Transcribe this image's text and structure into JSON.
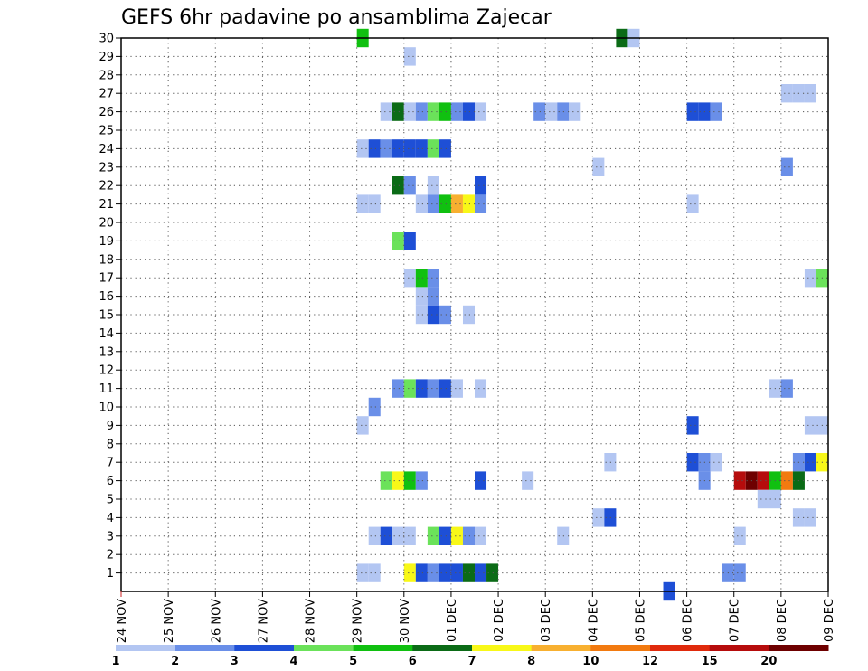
{
  "chart_data": {
    "type": "heatmap",
    "title": "GEFS 6hr padavine po ansamblima Zajecar",
    "x_tick_labels": [
      "24 NOV",
      "25 NOV",
      "26 NOV",
      "27 NOV",
      "28 NOV",
      "29 NOV",
      "30 NOV",
      "01 DEC",
      "02 DEC",
      "03 DEC",
      "04 DEC",
      "05 DEC",
      "06 DEC",
      "07 DEC",
      "08 DEC",
      "09 DEC"
    ],
    "y_tick_labels": [
      "1",
      "2",
      "3",
      "4",
      "5",
      "6",
      "7",
      "8",
      "9",
      "10",
      "11",
      "12",
      "13",
      "14",
      "15",
      "16",
      "17",
      "18",
      "19",
      "20",
      "21",
      "22",
      "23",
      "24",
      "25",
      "26",
      "27",
      "28",
      "29",
      "30"
    ],
    "x_range_days": [
      0,
      15
    ],
    "y_range_members": [
      0,
      30
    ],
    "grid": "dotted",
    "colorbar": {
      "boundaries": [
        "1",
        "2",
        "3",
        "4",
        "5",
        "6",
        "7",
        "8",
        "10",
        "12",
        "15",
        "20"
      ],
      "colors": [
        "#b3c6f2",
        "#6a8fe8",
        "#1e4fd6",
        "#6be25a",
        "#10c010",
        "#0b6b16",
        "#f8f818",
        "#f8b030",
        "#f27a10",
        "#e02a0c",
        "#b60c0c",
        "#6e0000"
      ]
    },
    "cells": [
      {
        "m": 30,
        "d": 5.0,
        "c": 4
      },
      {
        "m": 30,
        "d": 10.5,
        "c": 5
      },
      {
        "m": 30,
        "d": 10.75,
        "c": 0
      },
      {
        "m": 29,
        "d": 6.0,
        "c": 0
      },
      {
        "m": 27,
        "d": 14.0,
        "c": 0
      },
      {
        "m": 27,
        "d": 14.25,
        "c": 0
      },
      {
        "m": 27,
        "d": 14.5,
        "c": 0
      },
      {
        "m": 26,
        "d": 5.5,
        "c": 0
      },
      {
        "m": 26,
        "d": 5.75,
        "c": 5
      },
      {
        "m": 26,
        "d": 6.0,
        "c": 0
      },
      {
        "m": 26,
        "d": 6.25,
        "c": 1
      },
      {
        "m": 26,
        "d": 6.5,
        "c": 3
      },
      {
        "m": 26,
        "d": 6.75,
        "c": 4
      },
      {
        "m": 26,
        "d": 7.0,
        "c": 1
      },
      {
        "m": 26,
        "d": 7.25,
        "c": 2
      },
      {
        "m": 26,
        "d": 7.5,
        "c": 0
      },
      {
        "m": 26,
        "d": 8.75,
        "c": 1
      },
      {
        "m": 26,
        "d": 9.0,
        "c": 0
      },
      {
        "m": 26,
        "d": 9.25,
        "c": 1
      },
      {
        "m": 26,
        "d": 9.5,
        "c": 0
      },
      {
        "m": 26,
        "d": 12.0,
        "c": 2
      },
      {
        "m": 26,
        "d": 12.25,
        "c": 2
      },
      {
        "m": 26,
        "d": 12.5,
        "c": 1
      },
      {
        "m": 24,
        "d": 5.0,
        "c": 0
      },
      {
        "m": 24,
        "d": 5.25,
        "c": 2
      },
      {
        "m": 24,
        "d": 5.5,
        "c": 1
      },
      {
        "m": 24,
        "d": 5.75,
        "c": 2
      },
      {
        "m": 24,
        "d": 6.0,
        "c": 2
      },
      {
        "m": 24,
        "d": 6.25,
        "c": 2
      },
      {
        "m": 24,
        "d": 6.5,
        "c": 3
      },
      {
        "m": 24,
        "d": 6.75,
        "c": 2
      },
      {
        "m": 23,
        "d": 10.0,
        "c": 0
      },
      {
        "m": 23,
        "d": 14.0,
        "c": 1
      },
      {
        "m": 22,
        "d": 5.75,
        "c": 5
      },
      {
        "m": 22,
        "d": 6.0,
        "c": 1
      },
      {
        "m": 22,
        "d": 6.5,
        "c": 0
      },
      {
        "m": 22,
        "d": 7.5,
        "c": 2
      },
      {
        "m": 21,
        "d": 5.0,
        "c": 0
      },
      {
        "m": 21,
        "d": 5.25,
        "c": 0
      },
      {
        "m": 21,
        "d": 6.25,
        "c": 0
      },
      {
        "m": 21,
        "d": 6.5,
        "c": 1
      },
      {
        "m": 21,
        "d": 6.75,
        "c": 4
      },
      {
        "m": 21,
        "d": 7.0,
        "c": 7
      },
      {
        "m": 21,
        "d": 7.25,
        "c": 6
      },
      {
        "m": 21,
        "d": 7.5,
        "c": 1
      },
      {
        "m": 21,
        "d": 12.0,
        "c": 0
      },
      {
        "m": 19,
        "d": 5.75,
        "c": 3
      },
      {
        "m": 19,
        "d": 6.0,
        "c": 2
      },
      {
        "m": 17,
        "d": 6.0,
        "c": 0
      },
      {
        "m": 17,
        "d": 6.25,
        "c": 4
      },
      {
        "m": 17,
        "d": 6.5,
        "c": 1
      },
      {
        "m": 17,
        "d": 14.5,
        "c": 0
      },
      {
        "m": 17,
        "d": 14.75,
        "c": 3
      },
      {
        "m": 16,
        "d": 6.25,
        "c": 0
      },
      {
        "m": 16,
        "d": 6.5,
        "c": 1
      },
      {
        "m": 15,
        "d": 6.25,
        "c": 0
      },
      {
        "m": 15,
        "d": 6.5,
        "c": 2
      },
      {
        "m": 15,
        "d": 6.75,
        "c": 1
      },
      {
        "m": 15,
        "d": 7.25,
        "c": 0
      },
      {
        "m": 11,
        "d": 5.75,
        "c": 1
      },
      {
        "m": 11,
        "d": 6.0,
        "c": 3
      },
      {
        "m": 11,
        "d": 6.25,
        "c": 2
      },
      {
        "m": 11,
        "d": 6.5,
        "c": 1
      },
      {
        "m": 11,
        "d": 6.75,
        "c": 2
      },
      {
        "m": 11,
        "d": 7.0,
        "c": 0
      },
      {
        "m": 11,
        "d": 7.5,
        "c": 0
      },
      {
        "m": 11,
        "d": 13.75,
        "c": 0
      },
      {
        "m": 11,
        "d": 14.0,
        "c": 1
      },
      {
        "m": 10,
        "d": 5.25,
        "c": 1
      },
      {
        "m": 9,
        "d": 5.0,
        "c": 0
      },
      {
        "m": 9,
        "d": 12.0,
        "c": 2
      },
      {
        "m": 9,
        "d": 14.5,
        "c": 0
      },
      {
        "m": 9,
        "d": 14.75,
        "c": 0
      },
      {
        "m": 7,
        "d": 10.25,
        "c": 0
      },
      {
        "m": 7,
        "d": 12.0,
        "c": 2
      },
      {
        "m": 7,
        "d": 12.25,
        "c": 1
      },
      {
        "m": 7,
        "d": 12.5,
        "c": 0
      },
      {
        "m": 7,
        "d": 14.25,
        "c": 1
      },
      {
        "m": 7,
        "d": 14.5,
        "c": 2
      },
      {
        "m": 7,
        "d": 14.75,
        "c": 6
      },
      {
        "m": 6,
        "d": 5.5,
        "c": 3
      },
      {
        "m": 6,
        "d": 5.75,
        "c": 6
      },
      {
        "m": 6,
        "d": 6.0,
        "c": 4
      },
      {
        "m": 6,
        "d": 6.25,
        "c": 1
      },
      {
        "m": 6,
        "d": 7.5,
        "c": 2
      },
      {
        "m": 6,
        "d": 8.5,
        "c": 0
      },
      {
        "m": 6,
        "d": 12.25,
        "c": 1
      },
      {
        "m": 6,
        "d": 13.0,
        "c": 10
      },
      {
        "m": 6,
        "d": 13.25,
        "c": 11
      },
      {
        "m": 6,
        "d": 13.5,
        "c": 10
      },
      {
        "m": 6,
        "d": 13.75,
        "c": 4
      },
      {
        "m": 6,
        "d": 14.0,
        "c": 8
      },
      {
        "m": 6,
        "d": 14.25,
        "c": 5
      },
      {
        "m": 5,
        "d": 13.5,
        "c": 0
      },
      {
        "m": 5,
        "d": 13.75,
        "c": 0
      },
      {
        "m": 4,
        "d": 10.0,
        "c": 0
      },
      {
        "m": 4,
        "d": 10.25,
        "c": 2
      },
      {
        "m": 4,
        "d": 14.25,
        "c": 0
      },
      {
        "m": 4,
        "d": 14.5,
        "c": 0
      },
      {
        "m": 3,
        "d": 5.25,
        "c": 0
      },
      {
        "m": 3,
        "d": 5.5,
        "c": 2
      },
      {
        "m": 3,
        "d": 5.75,
        "c": 0
      },
      {
        "m": 3,
        "d": 6.0,
        "c": 0
      },
      {
        "m": 3,
        "d": 6.5,
        "c": 3
      },
      {
        "m": 3,
        "d": 6.75,
        "c": 2
      },
      {
        "m": 3,
        "d": 7.0,
        "c": 6
      },
      {
        "m": 3,
        "d": 7.25,
        "c": 1
      },
      {
        "m": 3,
        "d": 7.5,
        "c": 0
      },
      {
        "m": 3,
        "d": 9.25,
        "c": 0
      },
      {
        "m": 3,
        "d": 13.0,
        "c": 0
      },
      {
        "m": 1,
        "d": 5.0,
        "c": 0
      },
      {
        "m": 1,
        "d": 5.25,
        "c": 0
      },
      {
        "m": 1,
        "d": 6.0,
        "c": 6
      },
      {
        "m": 1,
        "d": 6.25,
        "c": 2
      },
      {
        "m": 1,
        "d": 6.5,
        "c": 1
      },
      {
        "m": 1,
        "d": 6.75,
        "c": 2
      },
      {
        "m": 1,
        "d": 7.0,
        "c": 2
      },
      {
        "m": 1,
        "d": 7.25,
        "c": 5
      },
      {
        "m": 1,
        "d": 7.5,
        "c": 2
      },
      {
        "m": 1,
        "d": 7.75,
        "c": 5
      },
      {
        "m": 1,
        "d": 12.75,
        "c": 1
      },
      {
        "m": 1,
        "d": 13.0,
        "c": 1
      },
      {
        "m": 0,
        "d": 11.5,
        "c": 2
      }
    ]
  }
}
